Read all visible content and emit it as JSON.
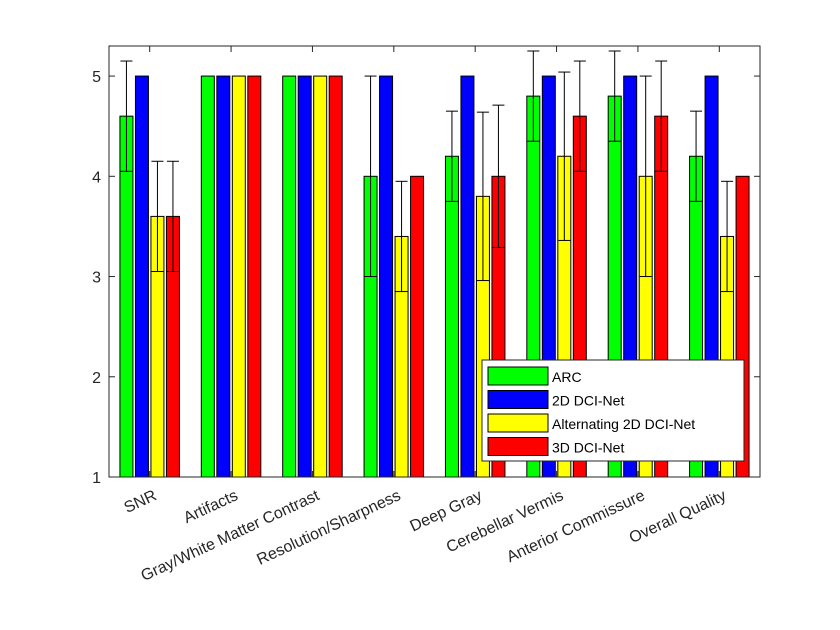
{
  "chart_data": {
    "type": "bar",
    "title": "",
    "xlabel": "",
    "ylabel": "",
    "ylim": [
      1,
      5.3
    ],
    "yticks": [
      1,
      2,
      3,
      4,
      5
    ],
    "grid": false,
    "legend_position": "bottom-right",
    "categories": [
      "SNR",
      "Artifacts",
      "Gray/White Matter Contrast",
      "Resolution/Sharpness",
      "Deep Gray",
      "Cerebellar Vermis",
      "Anterior Commissure",
      "Overall Quality"
    ],
    "series": [
      {
        "name": "ARC",
        "color": "#00ff00",
        "values": [
          4.6,
          5.0,
          5.0,
          4.0,
          4.2,
          4.8,
          4.8,
          4.2
        ],
        "errors": [
          0.55,
          0,
          0,
          1.0,
          0.45,
          0.45,
          0.45,
          0.45
        ]
      },
      {
        "name": "2D DCI-Net",
        "color": "#0000ff",
        "values": [
          5.0,
          5.0,
          5.0,
          5.0,
          5.0,
          5.0,
          5.0,
          5.0
        ],
        "errors": [
          0,
          0,
          0,
          0,
          0,
          0,
          0,
          0
        ]
      },
      {
        "name": "Alternating 2D DCI-Net",
        "color": "#ffff00",
        "values": [
          3.6,
          5.0,
          5.0,
          3.4,
          3.8,
          4.2,
          4.0,
          3.4
        ],
        "errors": [
          0.55,
          0,
          0,
          0.55,
          0.84,
          0.84,
          1.0,
          0.55
        ]
      },
      {
        "name": "3D DCI-Net",
        "color": "#ff0000",
        "values": [
          3.6,
          5.0,
          5.0,
          4.0,
          4.0,
          4.6,
          4.6,
          4.0
        ],
        "errors": [
          0.55,
          0,
          0,
          0,
          0.71,
          0.55,
          0.55,
          0
        ]
      }
    ]
  }
}
